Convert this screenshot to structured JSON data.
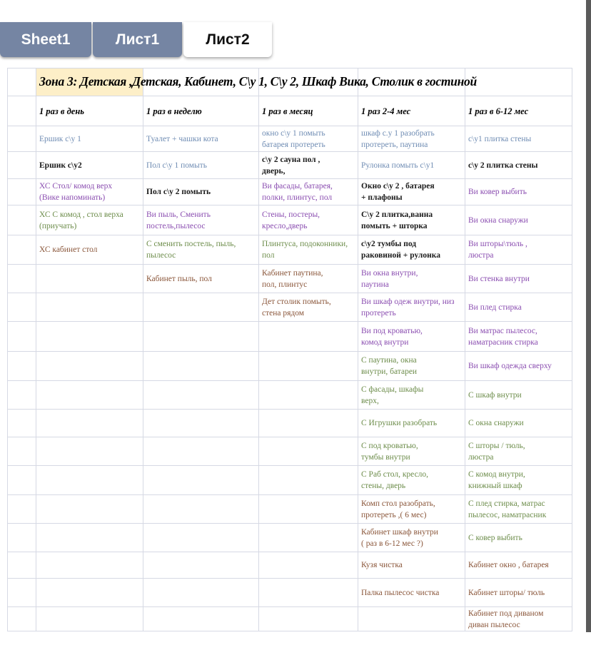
{
  "tabs": [
    {
      "label": "Sheet1",
      "active": false
    },
    {
      "label": "Лист1",
      "active": false
    },
    {
      "label": "Лист2",
      "active": true
    }
  ],
  "colors": {
    "b": "#6f8cb3",
    "k": "#1a1a1a",
    "p": "#8a4db0",
    "g": "#6c8c4a",
    "r": "#8a563a",
    "title_highlight": "#fdefc8"
  },
  "sheet": {
    "title": "Зона 3: Детская ,Детская, Кабинет, С\\у 1, С\\у 2, Шкаф Вика, Столик в гостиной",
    "headers": [
      "1 раз в день",
      "1 раз в неделю",
      "1 раз в месяц",
      "1 раз 2-4 мес",
      "1 раз в 6-12 мес"
    ],
    "rows": [
      [
        {
          "t": "Ершик с\\у 1",
          "c": "b"
        },
        {
          "t": "Туалет + чашки кота",
          "c": "b"
        },
        {
          "t": "окно с\\у 1 помыть\nбатарея протереть",
          "c": "b"
        },
        {
          "t": "шкаф с.у 1 разобрать\nпротереть, паутина",
          "c": "b"
        },
        {
          "t": "с\\у1 плитка стены",
          "c": "b"
        }
      ],
      [
        {
          "t": "Ершик с\\у2",
          "c": "k"
        },
        {
          "t": "Пол с\\у 1 помыть",
          "c": "b"
        },
        {
          "t": "с\\у 2 сауна пол ,\nдверь,",
          "c": "k"
        },
        {
          "t": "Рулонка помыть с\\у1",
          "c": "b"
        },
        {
          "t": "с\\у 2 плитка стены",
          "c": "k"
        }
      ],
      [
        {
          "t": "ХС Стол/ комод  верх\n(Вике напоминать)",
          "c": "p"
        },
        {
          "t": "Пол с\\у 2 помыть",
          "c": "k"
        },
        {
          "t": "Ви  фасады, батарея,\nполки, плинтус, пол",
          "c": "p"
        },
        {
          "t": "Окно с\\у 2 , батарея\n+ плафоны",
          "c": "k"
        },
        {
          "t": "Ви ковер выбить",
          "c": "p"
        }
      ],
      [
        {
          "t": "ХС С комод , стол верха\n(приучать)",
          "c": "g"
        },
        {
          "t": "Ви пыль,  Сменить\nпостель,пылесос",
          "c": "p"
        },
        {
          "t": "Стены, постеры,\nкресло,дверь",
          "c": "p"
        },
        {
          "t": "С\\у 2 плитка,ванна\nпомыть + шторка",
          "c": "k"
        },
        {
          "t": "Ви окна снаружи",
          "c": "p"
        }
      ],
      [
        {
          "t": "ХС кабинет стол",
          "c": "r"
        },
        {
          "t": "С сменить постель, пыль,\nпылесос",
          "c": "g"
        },
        {
          "t": "Плинтуса, подоконники,\nпол",
          "c": "g"
        },
        {
          "t": "с\\у2 тумбы под\nраковиной + рулонка",
          "c": "k"
        },
        {
          "t": "Ви шторы\\тюль ,\nлюстра",
          "c": "p"
        }
      ],
      [
        {
          "t": "",
          "c": "k"
        },
        {
          "t": "Кабинет пыль, пол",
          "c": "r"
        },
        {
          "t": "Кабинет паутина,\nпол, плинтус",
          "c": "r"
        },
        {
          "t": "Ви окна внутри,\nпаутина",
          "c": "p"
        },
        {
          "t": "Ви стенка внутри",
          "c": "p"
        }
      ],
      [
        {
          "t": "",
          "c": "k"
        },
        {
          "t": "",
          "c": "k"
        },
        {
          "t": "Дет столик помыть,\nстена рядом",
          "c": "r"
        },
        {
          "t": "Ви шкаф одеж внутри,  низ\nпротереть",
          "c": "p"
        },
        {
          "t": "Ви плед стирка",
          "c": "p"
        }
      ],
      [
        {
          "t": "",
          "c": "k"
        },
        {
          "t": "",
          "c": "k"
        },
        {
          "t": "",
          "c": "k"
        },
        {
          "t": "Ви под кроватью,\nкомод внутри",
          "c": "p"
        },
        {
          "t": "Ви матрас пылесос,\nнаматрасник стирка",
          "c": "p"
        }
      ],
      [
        {
          "t": "",
          "c": "k"
        },
        {
          "t": "",
          "c": "k"
        },
        {
          "t": "",
          "c": "k"
        },
        {
          "t": "С паутина, окна\nвнутри, батареи",
          "c": "g"
        },
        {
          "t": "Ви шкаф  одежда сверху",
          "c": "p"
        }
      ],
      [
        {
          "t": "",
          "c": "k"
        },
        {
          "t": "",
          "c": "k"
        },
        {
          "t": "",
          "c": "k"
        },
        {
          "t": "С фасады, шкафы\nверх,",
          "c": "g"
        },
        {
          "t": "С шкаф внутри",
          "c": "g"
        }
      ],
      [
        {
          "t": "",
          "c": "k"
        },
        {
          "t": "",
          "c": "k"
        },
        {
          "t": "",
          "c": "k"
        },
        {
          "t": "С Игрушки разобрать",
          "c": "g"
        },
        {
          "t": "С окна снаружи",
          "c": "g"
        }
      ],
      [
        {
          "t": "",
          "c": "k"
        },
        {
          "t": "",
          "c": "k"
        },
        {
          "t": "",
          "c": "k"
        },
        {
          "t": "С под кроватью,\nтумбы внутри",
          "c": "g"
        },
        {
          "t": "С шторы / тюль,\nлюстра",
          "c": "g"
        }
      ],
      [
        {
          "t": "",
          "c": "k"
        },
        {
          "t": "",
          "c": "k"
        },
        {
          "t": "",
          "c": "k"
        },
        {
          "t": "С Раб стол, кресло,\nстены, дверь",
          "c": "g"
        },
        {
          "t": "С комод внутри,\nкнижный шкаф",
          "c": "g"
        }
      ],
      [
        {
          "t": "",
          "c": "k"
        },
        {
          "t": "",
          "c": "k"
        },
        {
          "t": "",
          "c": "k"
        },
        {
          "t": "Комп стол разобрать,\nпротереть ,( 6 мес)",
          "c": "r"
        },
        {
          "t": "С плед стирка, матрас\nпылесос, наматрасник",
          "c": "g"
        }
      ],
      [
        {
          "t": "",
          "c": "k"
        },
        {
          "t": "",
          "c": "k"
        },
        {
          "t": "",
          "c": "k"
        },
        {
          "t": "Кабинет шкаф внутри\n( раз в 6-12 мес ?)",
          "c": "r"
        },
        {
          "t": " С ковер выбить",
          "c": "g"
        }
      ],
      [
        {
          "t": "",
          "c": "k"
        },
        {
          "t": "",
          "c": "k"
        },
        {
          "t": "",
          "c": "k"
        },
        {
          "t": "Кузя чистка",
          "c": "r"
        },
        {
          "t": "Кабинет окно , батарея",
          "c": "r"
        }
      ],
      [
        {
          "t": "",
          "c": "k"
        },
        {
          "t": "",
          "c": "k"
        },
        {
          "t": "",
          "c": "k"
        },
        {
          "t": "Палка пылесос чистка",
          "c": "r"
        },
        {
          "t": "Кабинет шторы/ тюль",
          "c": "r"
        }
      ],
      [
        {
          "t": "",
          "c": "k"
        },
        {
          "t": "",
          "c": "k"
        },
        {
          "t": "",
          "c": "k"
        },
        {
          "t": "",
          "c": "k"
        },
        {
          "t": "Кабинет под диваном\nдиван пылесос",
          "c": "r"
        }
      ]
    ]
  }
}
